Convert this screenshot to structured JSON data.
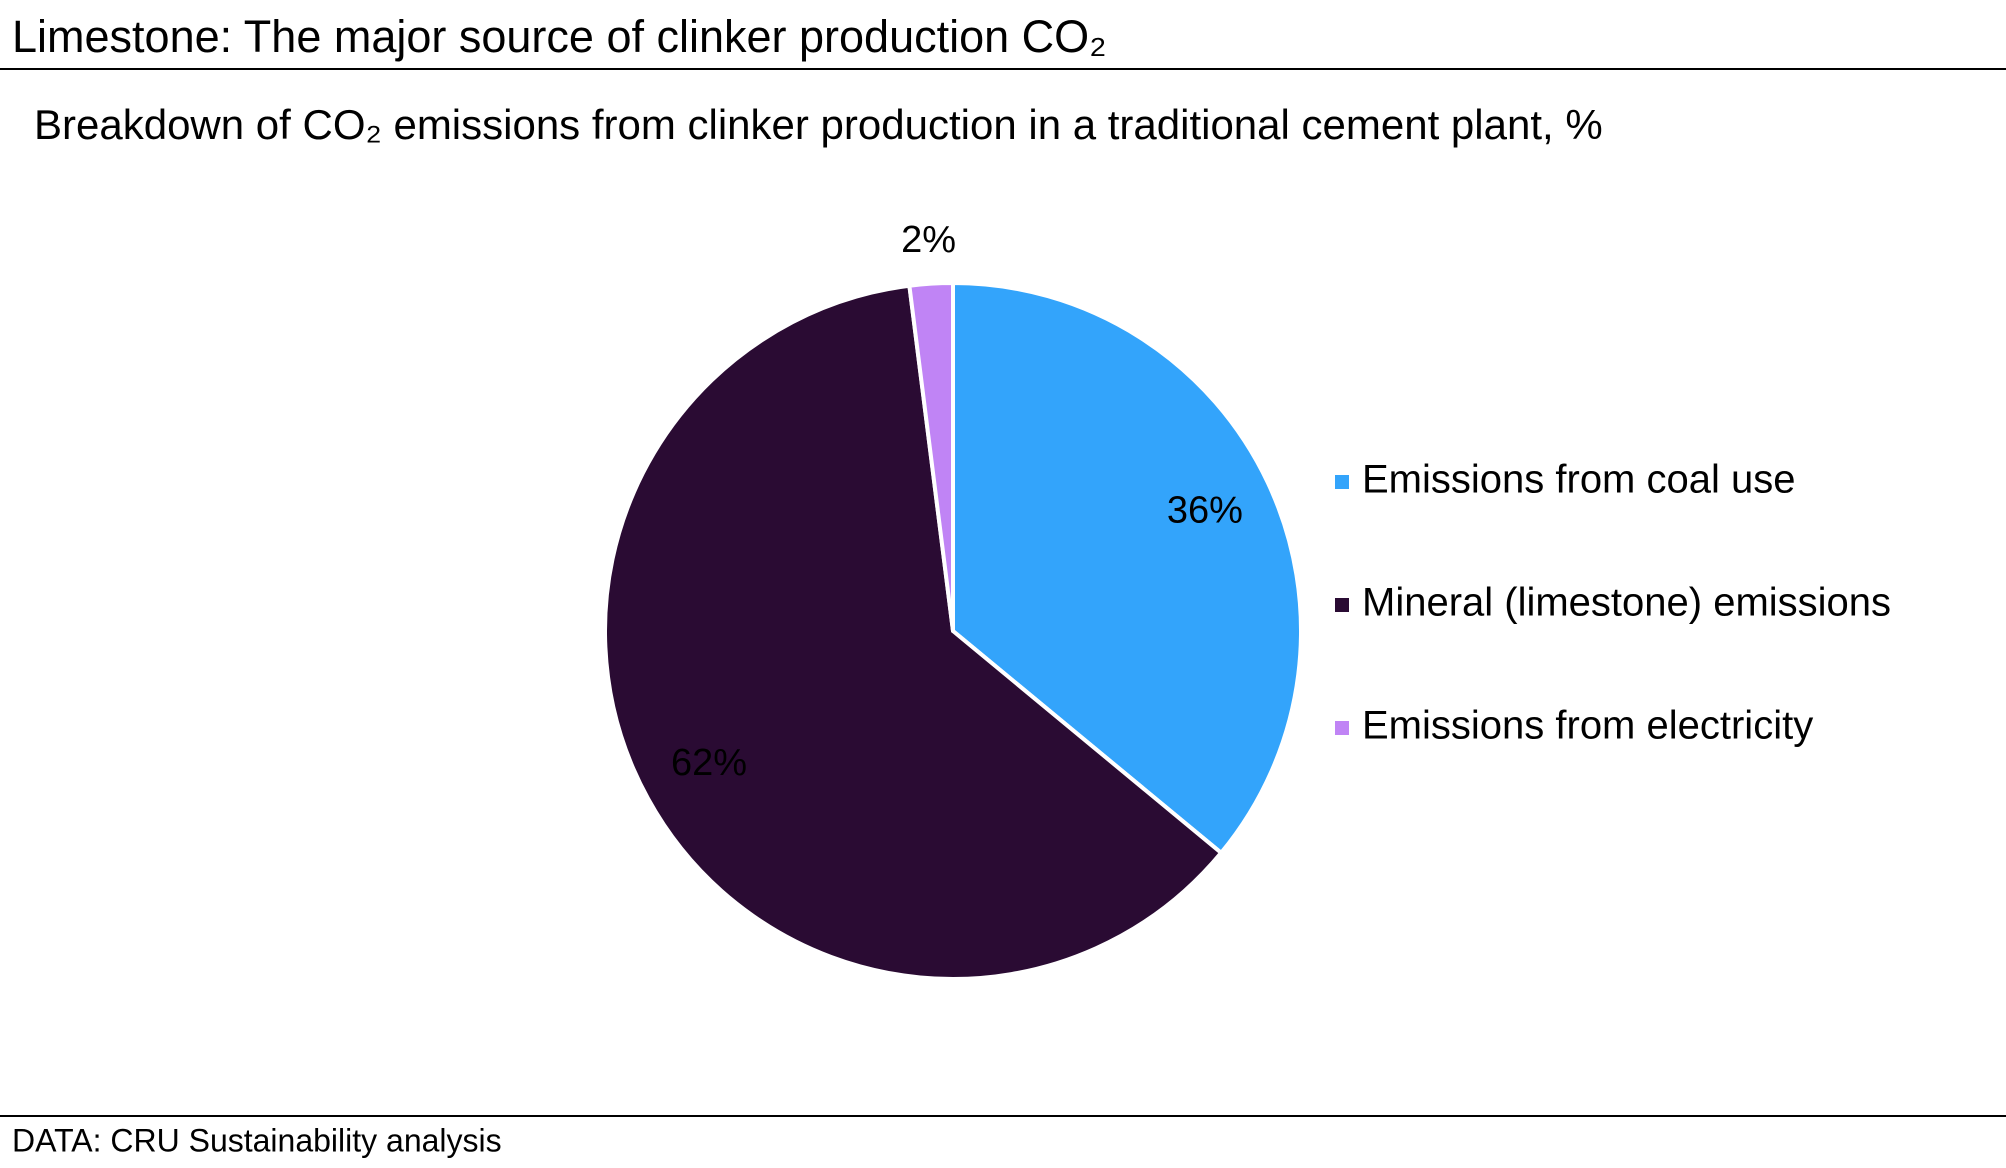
{
  "chart_data": {
    "type": "pie",
    "title": "Limestone: The major source of clinker production CO₂",
    "subtitle": "Breakdown of CO₂ emissions from clinker production in a traditional cement plant, %",
    "categories": [
      "Emissions from coal use",
      "Mineral (limestone) emissions",
      "Emissions from electricity"
    ],
    "values": [
      36,
      62,
      2
    ],
    "value_labels": [
      "36%",
      "62%",
      "2%"
    ],
    "colors": [
      "#33a4fb",
      "#2a0b33",
      "#c084f5"
    ],
    "outside_label_color": "#1f4fa0",
    "legend": "right",
    "source": "DATA: CRU Sustainability analysis"
  }
}
